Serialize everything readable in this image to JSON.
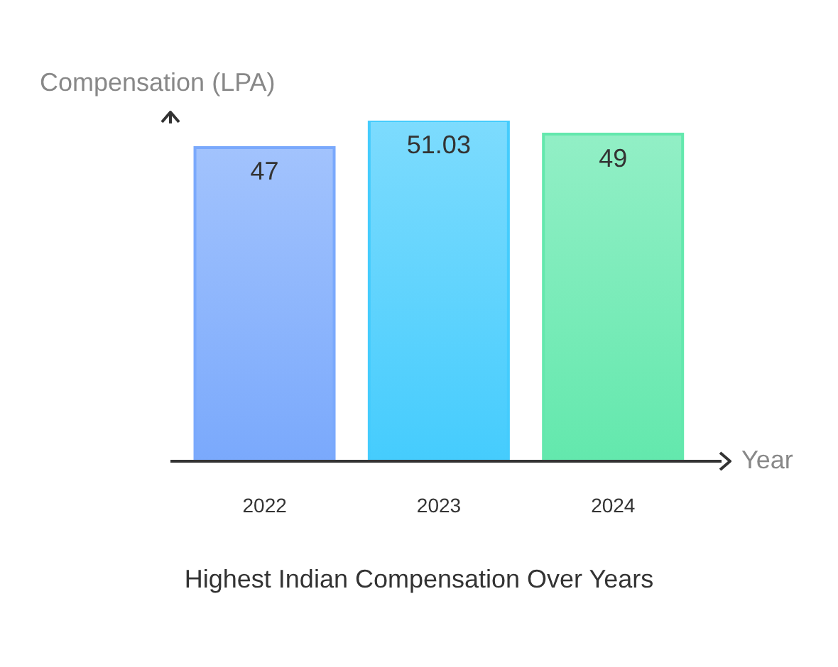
{
  "chart_data": {
    "type": "bar",
    "title": "Highest Indian Compensation Over Years",
    "xlabel": "Year",
    "ylabel": "Compensation (LPA)",
    "categories": [
      "2022",
      "2023",
      "2024"
    ],
    "values": [
      47,
      51.03,
      49
    ],
    "colors": [
      "#7aa9fc",
      "#45ccfd",
      "#63e8ad"
    ],
    "data_labels": true,
    "grid": false,
    "legend": false
  }
}
